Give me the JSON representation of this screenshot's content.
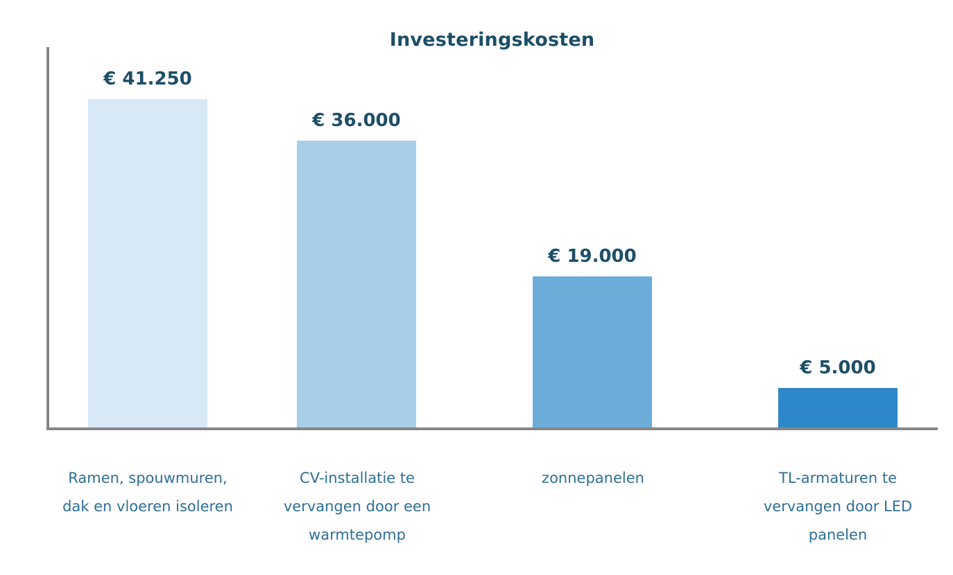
{
  "chart_data": {
    "type": "bar",
    "title": "Investeringskosten",
    "categories": [
      "Ramen, spouwmuren, dak en vloeren isoleren",
      "CV-installatie te vervangen door een warmtepomp",
      "zonnepanelen",
      "TL-armaturen te vervangen door LED panelen"
    ],
    "values": [
      41250,
      36000,
      19000,
      5000
    ],
    "value_labels": [
      "€ 41.250",
      "€ 36.000",
      "€ 19.000",
      "€ 5.000"
    ],
    "bar_colors": [
      "#d7e8f6",
      "#a9cee8",
      "#6cacd9",
      "#2d87c8"
    ],
    "xlabel": "",
    "ylabel": "",
    "ylim": [
      0,
      41250
    ],
    "grid": false,
    "legend": false,
    "axis_color": "#868686",
    "title_color": "#1d4e68",
    "value_label_color": "#1d4e68",
    "category_label_color": "#2e6f94"
  }
}
